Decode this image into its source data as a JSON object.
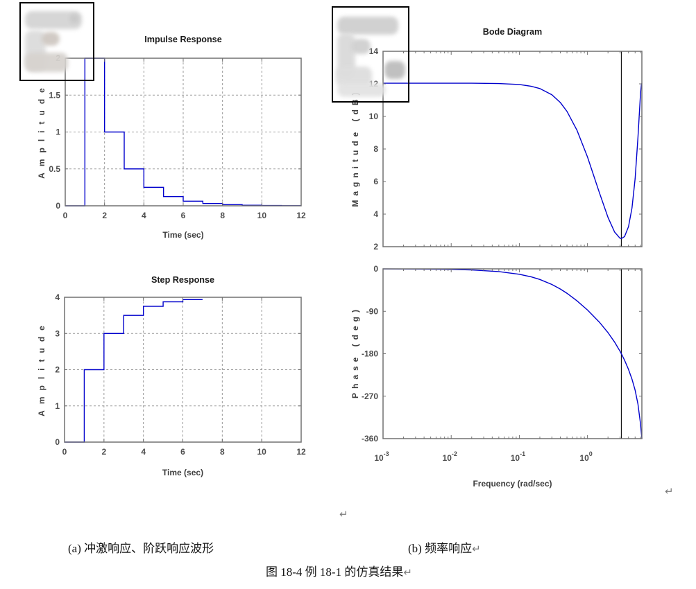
{
  "page": {
    "background": "#ffffff"
  },
  "colors": {
    "curve": "#0000cc",
    "axis": "#707070",
    "grid": "#9a9a9a",
    "baseline": "#404040",
    "marker": "#111111",
    "tick_text": "#4d4d4d"
  },
  "captions": {
    "a": "(a) 冲激响应、阶跃响应波形",
    "b": "(b) 频率响应",
    "figure": "图 18-4 例 18-1 的仿真结果",
    "return_mark": "↵"
  },
  "chart_data": [
    {
      "id": "impulse",
      "type": "stairs",
      "title": "Impulse Response",
      "xlabel": "Time (sec)",
      "ylabel": "Amplitude",
      "xlim": [
        0,
        12
      ],
      "ylim": [
        0,
        2
      ],
      "xticks": [
        0,
        2,
        4,
        6,
        8,
        10,
        12
      ],
      "yticks": [
        0,
        0.5,
        1,
        1.5,
        2
      ],
      "grid": true,
      "baseline": 0,
      "step_edges": [
        0,
        1,
        2,
        3,
        4,
        5,
        6,
        7,
        8,
        9,
        10,
        11,
        12
      ],
      "step_values": [
        0,
        2,
        1,
        0.5,
        0.25,
        0.125,
        0.0625,
        0.0313,
        0.0156,
        0.0078,
        0.0039,
        0.002
      ]
    },
    {
      "id": "step",
      "type": "stairs",
      "title": "Step Response",
      "xlabel": "Time (sec)",
      "ylabel": "Amplitude",
      "xlim": [
        0,
        12
      ],
      "ylim": [
        0,
        4
      ],
      "xticks": [
        0,
        2,
        4,
        6,
        8,
        10,
        12
      ],
      "yticks": [
        0,
        1,
        2,
        3,
        4
      ],
      "grid": true,
      "baseline": 4,
      "step_edges": [
        0,
        1,
        2,
        3,
        4,
        5,
        6,
        7
      ],
      "step_values": [
        0,
        2,
        3,
        3.5,
        3.75,
        3.875,
        3.9375
      ]
    },
    {
      "id": "bode_mag",
      "type": "line",
      "title": "Bode Diagram",
      "ylabel": "Magnitude (dB)",
      "xscale": "log",
      "xlim": [
        0.001,
        6.2832
      ],
      "ylim": [
        2,
        14
      ],
      "yticks": [
        2,
        4,
        6,
        8,
        10,
        12,
        14
      ],
      "xtick_exponents": [
        -3,
        -2,
        -1,
        0
      ],
      "xticklabels": false,
      "grid": false,
      "marker_freq": 3.1416,
      "x": [
        0.001,
        0.002,
        0.005,
        0.01,
        0.02,
        0.05,
        0.1,
        0.15,
        0.2,
        0.3,
        0.4,
        0.5,
        0.7,
        1,
        1.5,
        2,
        2.5,
        3,
        3.1416,
        3.5,
        4,
        4.5,
        5,
        5.5,
        6,
        6.2,
        6.2832
      ],
      "y": [
        12.04,
        12.04,
        12.04,
        12.04,
        12.04,
        12.02,
        11.96,
        11.85,
        11.71,
        11.33,
        10.85,
        10.31,
        9.16,
        7.51,
        5.3,
        3.8,
        2.9,
        2.52,
        2.5,
        2.62,
        3.23,
        4.38,
        6.17,
        8.69,
        11.4,
        11.98,
        12.04
      ]
    },
    {
      "id": "bode_phase",
      "type": "line",
      "ylabel": "Phase (deg)",
      "xlabel": "Frequency  (rad/sec)",
      "xscale": "log",
      "xlim": [
        0.001,
        6.2832
      ],
      "ylim": [
        -360,
        0
      ],
      "yticks": [
        0,
        -90,
        -180,
        -270,
        -360
      ],
      "xtick_exponents": [
        -3,
        -2,
        -1,
        0
      ],
      "grid": false,
      "marker_freq": 3.1416,
      "x": [
        0.001,
        0.002,
        0.005,
        0.01,
        0.02,
        0.05,
        0.1,
        0.15,
        0.2,
        0.3,
        0.4,
        0.5,
        0.7,
        1,
        1.5,
        2,
        2.5,
        3,
        3.1416,
        3.5,
        4,
        4.5,
        5,
        5.5,
        6,
        6.2,
        6.2832
      ],
      "y": [
        -0.11,
        -0.23,
        -0.57,
        -1.15,
        -2.29,
        -5.72,
        -11.41,
        -17.0,
        -22.48,
        -32.99,
        -42.77,
        -51.78,
        -67.65,
        -87.26,
        -113.29,
        -135.21,
        -155.3,
        -174.59,
        -180.0,
        -193.72,
        -213.26,
        -233.97,
        -257.29,
        -286.47,
        -328.73,
        -350.49,
        -360.0
      ]
    }
  ]
}
